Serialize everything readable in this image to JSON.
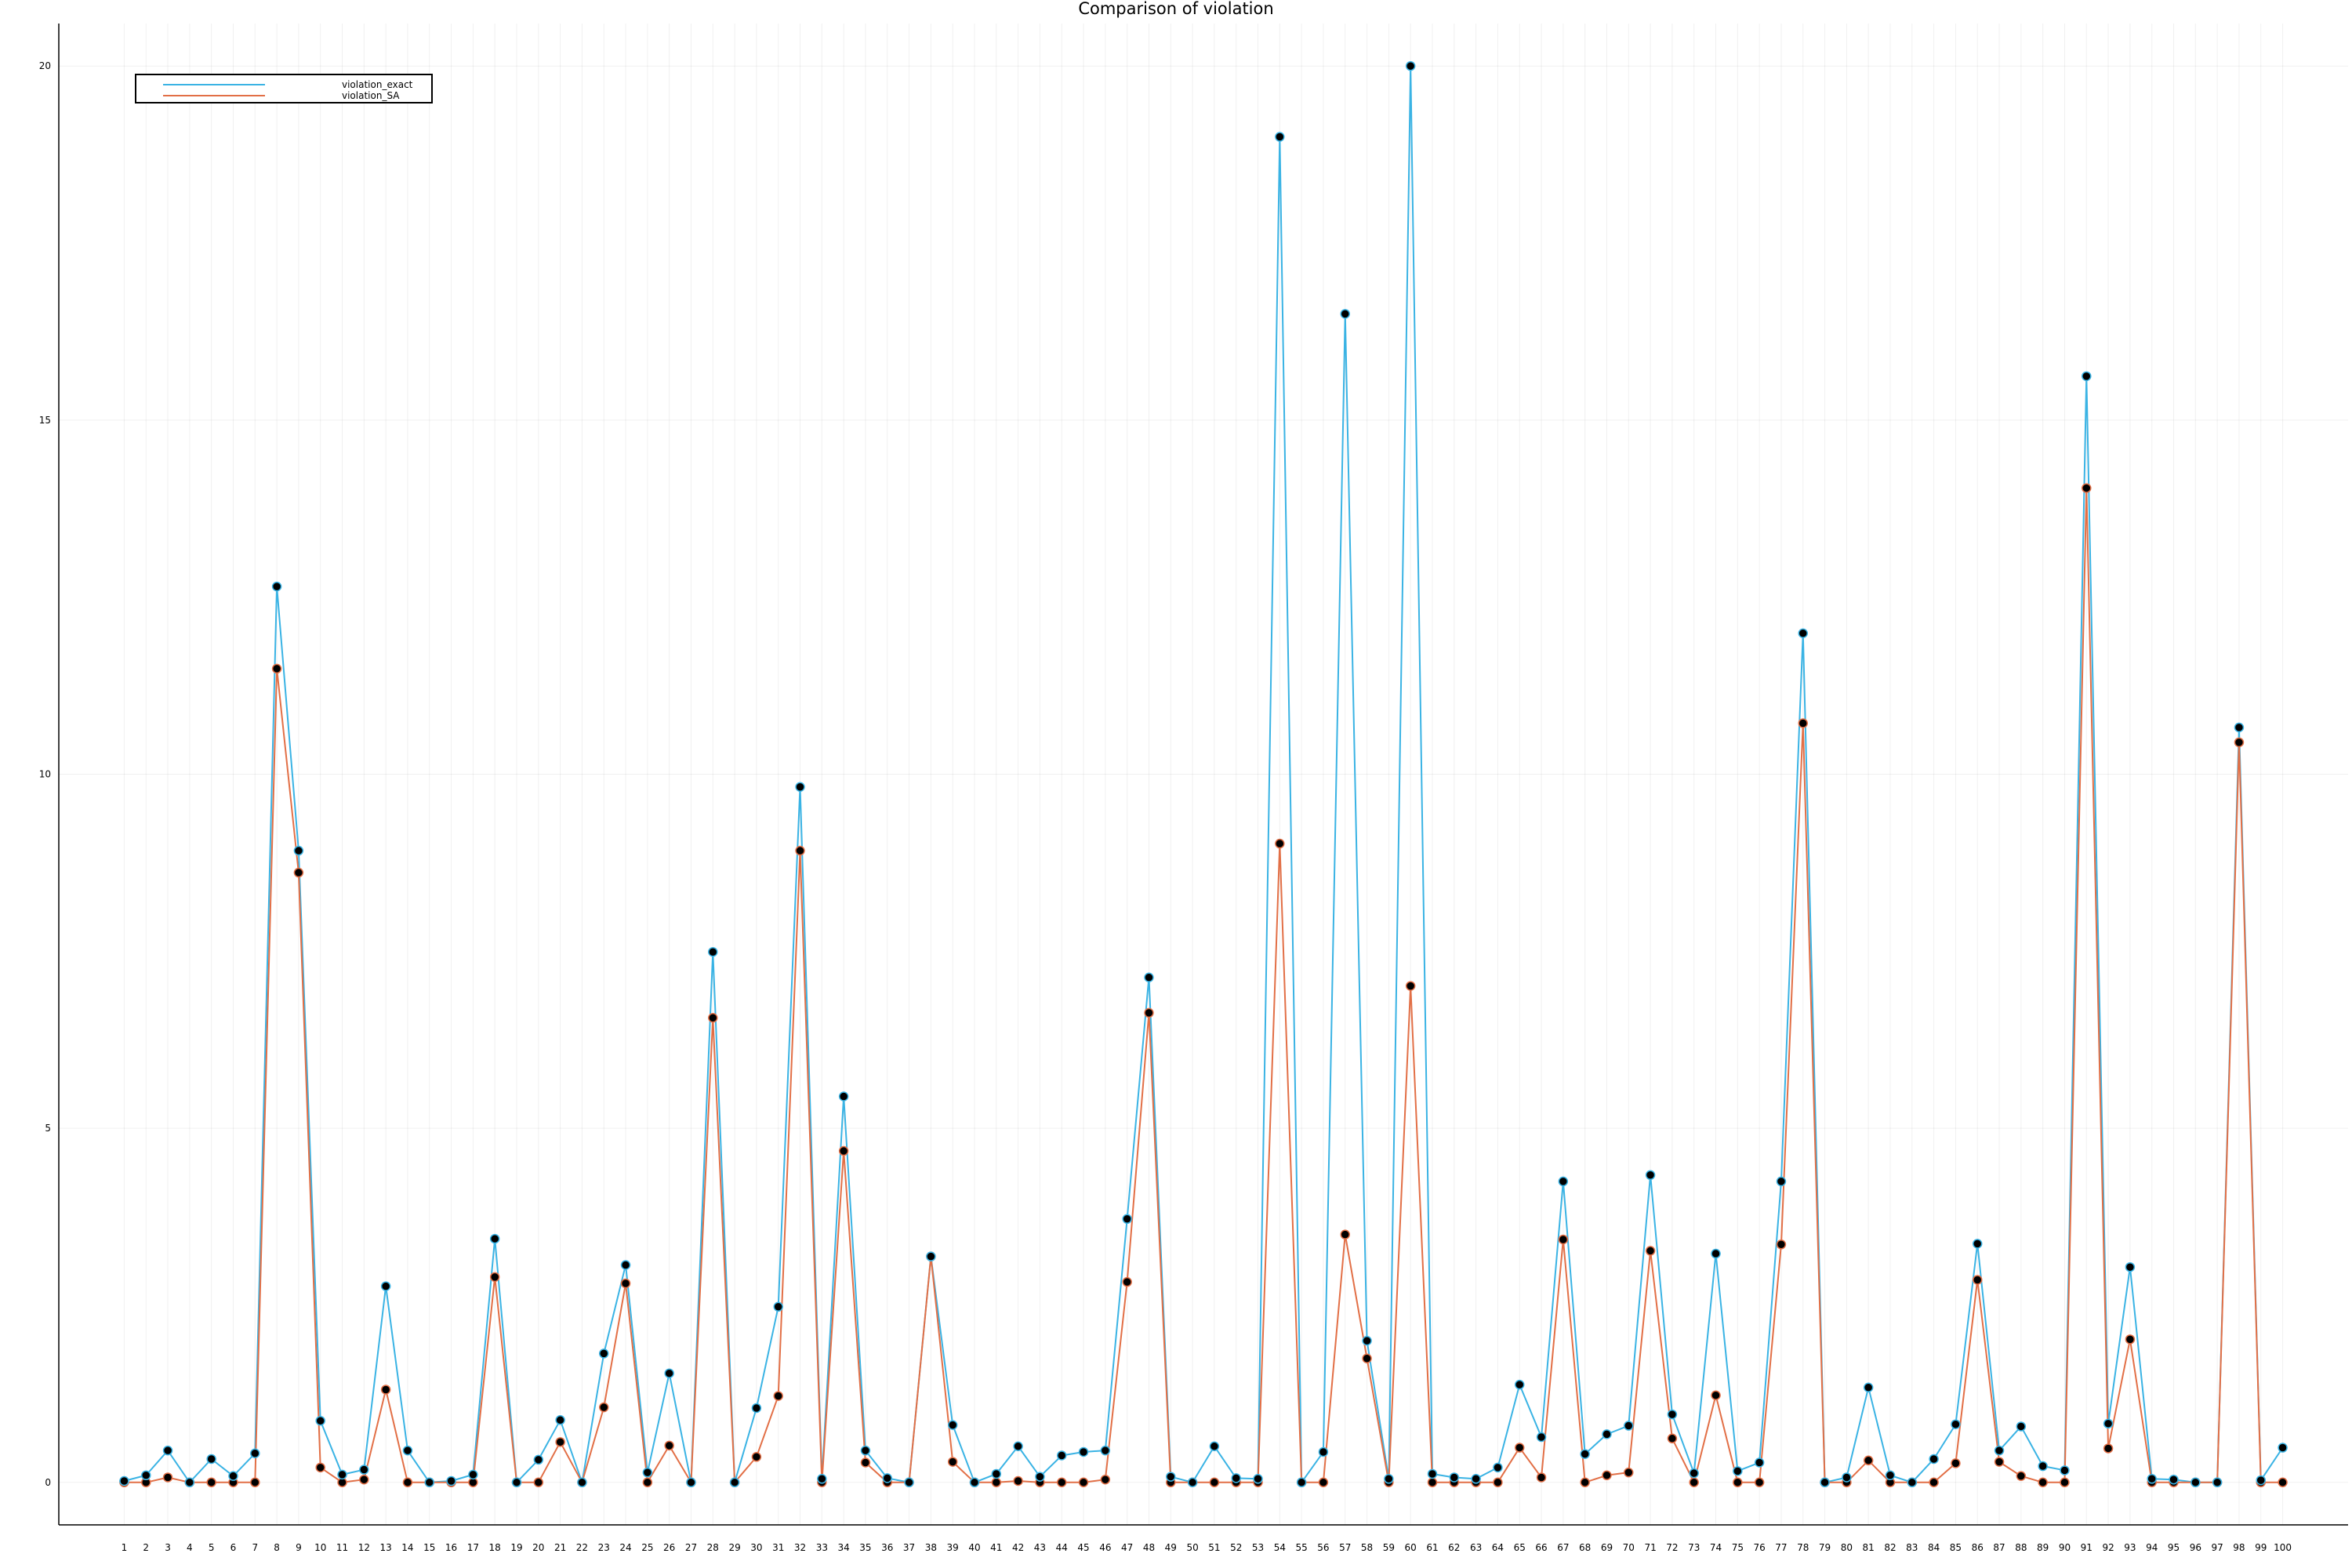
{
  "chart_data": {
    "type": "line",
    "title": "Comparison of violation",
    "xlabel": "",
    "ylabel": "",
    "x": [
      1,
      2,
      3,
      4,
      5,
      6,
      7,
      8,
      9,
      10,
      11,
      12,
      13,
      14,
      15,
      16,
      17,
      18,
      19,
      20,
      21,
      22,
      23,
      24,
      25,
      26,
      27,
      28,
      29,
      30,
      31,
      32,
      33,
      34,
      35,
      36,
      37,
      38,
      39,
      40,
      41,
      42,
      43,
      44,
      45,
      46,
      47,
      48,
      49,
      50,
      51,
      52,
      53,
      54,
      55,
      56,
      57,
      58,
      59,
      60,
      61,
      62,
      63,
      64,
      65,
      66,
      67,
      68,
      69,
      70,
      71,
      72,
      73,
      74,
      75,
      76,
      77,
      78,
      79,
      80,
      81,
      82,
      83,
      84,
      85,
      86,
      87,
      88,
      89,
      90,
      91,
      92,
      93,
      94,
      95,
      96,
      97,
      98,
      99,
      100
    ],
    "xticks": [
      "1",
      "2",
      "3",
      "4",
      "5",
      "6",
      "7",
      "8",
      "9",
      "10",
      "11",
      "12",
      "13",
      "14",
      "15",
      "16",
      "17",
      "18",
      "19",
      "20",
      "21",
      "22",
      "23",
      "24",
      "25",
      "26",
      "27",
      "28",
      "29",
      "30",
      "31",
      "32",
      "33",
      "34",
      "35",
      "36",
      "37",
      "38",
      "39",
      "40",
      "41",
      "42",
      "43",
      "44",
      "45",
      "46",
      "47",
      "48",
      "49",
      "50",
      "51",
      "52",
      "53",
      "54",
      "55",
      "56",
      "57",
      "58",
      "59",
      "60",
      "61",
      "62",
      "63",
      "64",
      "65",
      "66",
      "67",
      "68",
      "69",
      "70",
      "71",
      "72",
      "73",
      "74",
      "75",
      "76",
      "77",
      "78",
      "79",
      "80",
      "81",
      "82",
      "83",
      "84",
      "85",
      "86",
      "87",
      "88",
      "89",
      "90",
      "91",
      "92",
      "93",
      "94",
      "95",
      "96",
      "97",
      "98",
      "99",
      "100"
    ],
    "yticks": [
      "0",
      "5",
      "10",
      "15",
      "20"
    ],
    "ylim": [
      -0.6,
      20.6
    ],
    "xlim": [
      -2,
      103
    ],
    "grid": true,
    "legend_position": "top-left",
    "series": [
      {
        "name": "violation_exact",
        "color": "#3ab3e4",
        "values": [
          0.02,
          0.1,
          0.45,
          0.0,
          0.33,
          0.09,
          0.41,
          12.65,
          8.92,
          0.87,
          0.11,
          0.18,
          2.77,
          0.45,
          0.0,
          0.02,
          0.11,
          3.44,
          0.0,
          0.32,
          0.88,
          0.0,
          1.82,
          3.07,
          0.14,
          1.54,
          0.0,
          7.49,
          0.0,
          1.05,
          2.48,
          9.82,
          0.05,
          5.45,
          0.45,
          0.06,
          0.0,
          3.19,
          0.81,
          0.0,
          0.12,
          0.51,
          0.08,
          0.38,
          0.43,
          0.45,
          3.72,
          7.13,
          0.08,
          0.0,
          0.51,
          0.06,
          0.05,
          19.0,
          0.0,
          0.43,
          16.5,
          2.0,
          0.05,
          20.0,
          0.12,
          0.07,
          0.05,
          0.21,
          1.38,
          0.64,
          4.25,
          0.4,
          0.68,
          0.8,
          4.34,
          0.96,
          0.13,
          3.23,
          0.16,
          0.28,
          4.25,
          11.99,
          0.0,
          0.07,
          1.34,
          0.1,
          0.0,
          0.33,
          0.82,
          3.37,
          0.45,
          0.79,
          0.23,
          0.17,
          15.62,
          0.83,
          3.04,
          0.05,
          0.04,
          0.0,
          0.0,
          10.66,
          0.03,
          0.49
        ]
      },
      {
        "name": "violation_SA",
        "color": "#e26f46",
        "values": [
          0.0,
          0.0,
          0.07,
          0.0,
          0.0,
          0.0,
          0.0,
          11.49,
          8.61,
          0.21,
          0.0,
          0.04,
          1.31,
          0.0,
          0.0,
          0.0,
          0.0,
          2.9,
          0.0,
          0.0,
          0.57,
          0.0,
          1.06,
          2.81,
          0.0,
          0.52,
          0.0,
          6.56,
          0.0,
          0.36,
          1.22,
          8.92,
          0.0,
          4.68,
          0.28,
          0.0,
          0.0,
          3.19,
          0.29,
          0.0,
          0.0,
          0.02,
          0.0,
          0.0,
          0.0,
          0.04,
          2.83,
          6.63,
          0.0,
          0.0,
          0.0,
          0.0,
          0.0,
          9.02,
          0.0,
          0.0,
          3.5,
          1.75,
          0.0,
          7.01,
          0.0,
          0.0,
          0.0,
          0.0,
          0.49,
          0.07,
          3.43,
          0.0,
          0.1,
          0.14,
          3.27,
          0.62,
          0.0,
          1.23,
          0.0,
          0.0,
          3.36,
          10.72,
          0.0,
          0.0,
          0.31,
          0.0,
          0.0,
          0.0,
          0.27,
          2.86,
          0.29,
          0.09,
          0.0,
          0.0,
          14.04,
          0.48,
          2.02,
          0.0,
          0.0,
          0.0,
          0.0,
          10.45,
          0.0,
          0.0
        ]
      }
    ]
  }
}
